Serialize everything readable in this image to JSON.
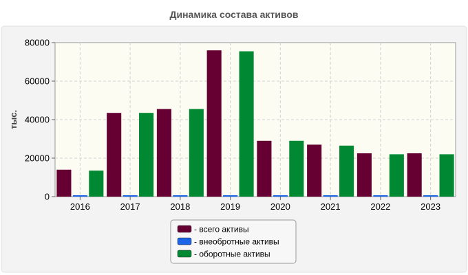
{
  "chart_data": {
    "type": "bar",
    "title": "Динамика состава активов",
    "xlabel": "",
    "ylabel": "тыс.",
    "ylim": [
      0,
      80000
    ],
    "yticks": [
      0,
      20000,
      40000,
      60000,
      80000
    ],
    "grid": true,
    "legend_position": "bottom-center",
    "categories": [
      "2016",
      "2017",
      "2018",
      "2019",
      "2020",
      "2021",
      "2022",
      "2023"
    ],
    "series": [
      {
        "name": "- всего активы",
        "color": "#660033",
        "values": [
          14000,
          43500,
          45500,
          76000,
          29000,
          27000,
          22500,
          22500
        ]
      },
      {
        "name": "- внеобротные активы",
        "color": "#1a66e6",
        "values": [
          700,
          300,
          300,
          300,
          300,
          300,
          300,
          300
        ]
      },
      {
        "name": "- оборотные активы",
        "color": "#008833",
        "values": [
          13500,
          43500,
          45500,
          75500,
          29000,
          26500,
          22000,
          22000
        ]
      }
    ]
  }
}
